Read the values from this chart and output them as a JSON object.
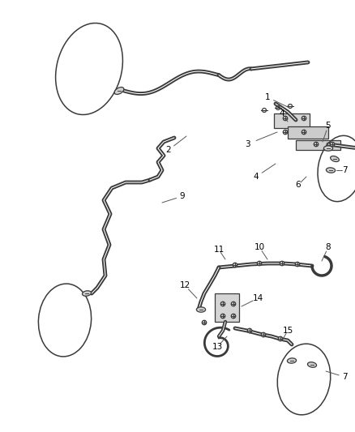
{
  "bg_color": "#ffffff",
  "line_color": "#3a3a3a",
  "text_color": "#000000",
  "figsize": [
    4.38,
    5.33
  ],
  "dpi": 100,
  "lw_wire": 1.5,
  "lw_thin": 0.8,
  "font_size": 7.5
}
